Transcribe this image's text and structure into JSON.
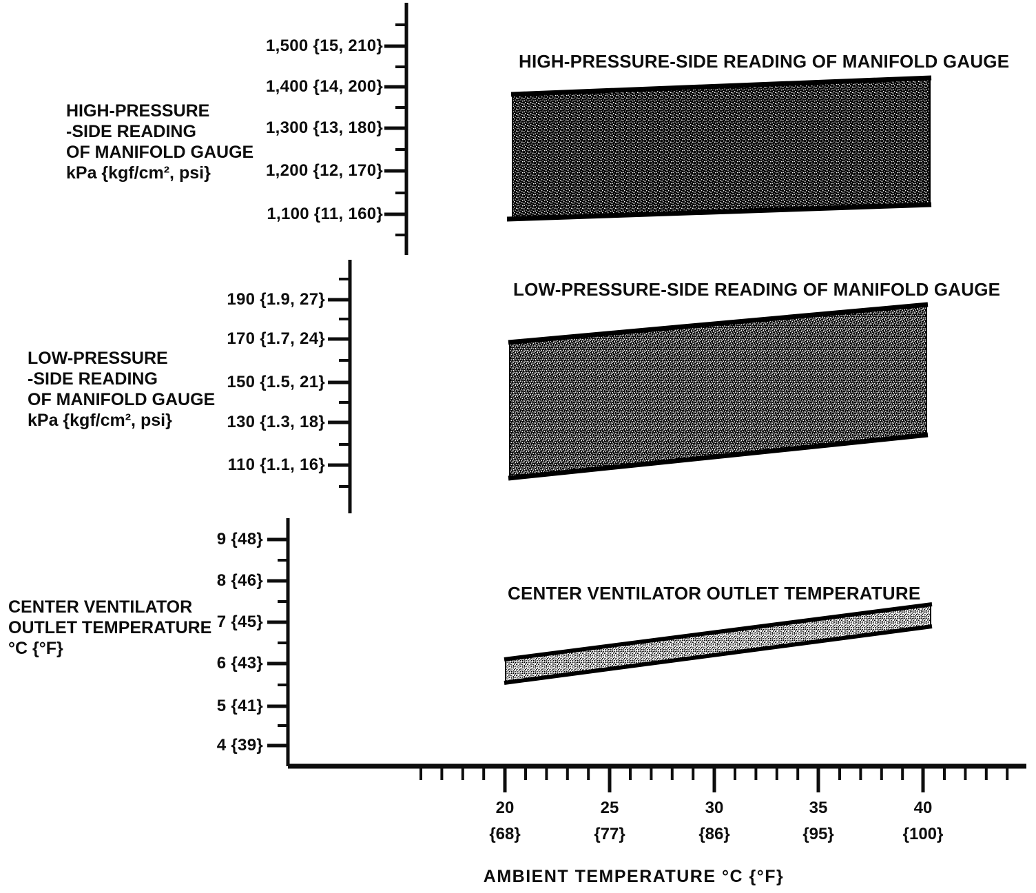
{
  "figure": {
    "charts": [
      {
        "name": "high_pressure_side",
        "band_title": "HIGH-PRESSURE-SIDE READING OF MANIFOLD GAUGE",
        "axis_label": [
          "HIGH-PRESSURE",
          "-SIDE READING",
          "OF MANIFOLD GAUGE",
          "kPa {kgf/cm², psi}"
        ],
        "yticks": [
          "1,500 {15, 210}",
          "1,400 {14, 200}",
          "1,300 {13, 180}",
          "1,200 {12, 170}",
          "1,100 {11, 160}"
        ]
      },
      {
        "name": "low_pressure_side",
        "band_title": "LOW-PRESSURE-SIDE READING OF MANIFOLD GAUGE",
        "axis_label": [
          "LOW-PRESSURE",
          "-SIDE READING",
          "OF MANIFOLD GAUGE",
          "kPa {kgf/cm², psi}"
        ],
        "yticks": [
          "190 {1.9, 27}",
          "170 {1.7, 24}",
          "150 {1.5, 21}",
          "130 {1.3, 18}",
          "110 {1.1, 16}"
        ]
      },
      {
        "name": "center_ventilator_outlet",
        "band_title": "CENTER VENTILATOR OUTLET TEMPERATURE",
        "axis_label": [
          "CENTER VENTILATOR",
          "OUTLET TEMPERATURE",
          "°C {°F}"
        ],
        "yticks": [
          "9 {48}",
          "8 {46}",
          "7 {45}",
          "6 {43}",
          "5 {41}",
          "4 {39}"
        ]
      }
    ],
    "x_axis": {
      "title": "AMBIENT TEMPERATURE °C {°F}",
      "ticks": [
        {
          "c": "20",
          "f": "{68}"
        },
        {
          "c": "25",
          "f": "{77}"
        },
        {
          "c": "30",
          "f": "{86}"
        },
        {
          "c": "35",
          "f": "{95}"
        },
        {
          "c": "40",
          "f": "{100}"
        }
      ]
    },
    "ink_color": "#0d0d0d",
    "background_color": "#ffffff"
  },
  "chart_data": [
    {
      "type": "area",
      "title": "HIGH-PRESSURE-SIDE READING OF MANIFOLD GAUGE",
      "ylabel": "HIGH-PRESSURE-SIDE READING OF MANIFOLD GAUGE kPa {kgf/cm², psi}",
      "xlabel": "AMBIENT TEMPERATURE °C {°F}",
      "x": [
        20,
        40
      ],
      "series": [
        {
          "name": "acceptable band upper (kPa)",
          "values": [
            1390,
            1425
          ]
        },
        {
          "name": "acceptable band lower (kPa)",
          "values": [
            1090,
            1125
          ]
        }
      ],
      "ytick_values_kPa": [
        1100,
        1200,
        1300,
        1400,
        1500
      ],
      "ytick_values_kgf_cm2": [
        11,
        12,
        13,
        14,
        15
      ],
      "ytick_values_psi": [
        160,
        170,
        180,
        200,
        210
      ],
      "ylim": [
        1050,
        1580
      ],
      "xlim": [
        16,
        44
      ],
      "grid": false,
      "legend": "none"
    },
    {
      "type": "area",
      "title": "LOW-PRESSURE-SIDE READING OF MANIFOLD GAUGE",
      "ylabel": "LOW-PRESSURE-SIDE READING OF MANIFOLD GAUGE kPa {kgf/cm², psi}",
      "xlabel": "AMBIENT TEMPERATURE °C {°F}",
      "x": [
        20,
        40
      ],
      "series": [
        {
          "name": "acceptable band upper (kPa)",
          "values": [
            170,
            187
          ]
        },
        {
          "name": "acceptable band lower (kPa)",
          "values": [
            105,
            125
          ]
        }
      ],
      "ytick_values_kPa": [
        110,
        130,
        150,
        170,
        190
      ],
      "ytick_values_kgf_cm2": [
        1.1,
        1.3,
        1.5,
        1.7,
        1.9
      ],
      "ytick_values_psi": [
        16,
        18,
        21,
        24,
        27
      ],
      "ylim": [
        100,
        205
      ],
      "xlim": [
        16,
        44
      ],
      "grid": false,
      "legend": "none"
    },
    {
      "type": "area",
      "title": "CENTER VENTILATOR OUTLET TEMPERATURE",
      "ylabel": "CENTER VENTILATOR OUTLET TEMPERATURE °C {°F}",
      "xlabel": "AMBIENT TEMPERATURE °C {°F}",
      "x": [
        20,
        40
      ],
      "series": [
        {
          "name": "acceptable band upper (°C)",
          "values": [
            6.0,
            7.4
          ]
        },
        {
          "name": "acceptable band lower (°C)",
          "values": [
            5.5,
            6.9
          ]
        }
      ],
      "ytick_values_C": [
        4,
        5,
        6,
        7,
        8,
        9
      ],
      "ytick_values_F": [
        39,
        41,
        43,
        45,
        46,
        48
      ],
      "xtick_values_C": [
        20,
        25,
        30,
        35,
        40
      ],
      "xtick_values_F": [
        68,
        77,
        86,
        95,
        100
      ],
      "ylim": [
        3.5,
        9.5
      ],
      "xlim": [
        16,
        44
      ],
      "grid": false,
      "legend": "none"
    }
  ]
}
